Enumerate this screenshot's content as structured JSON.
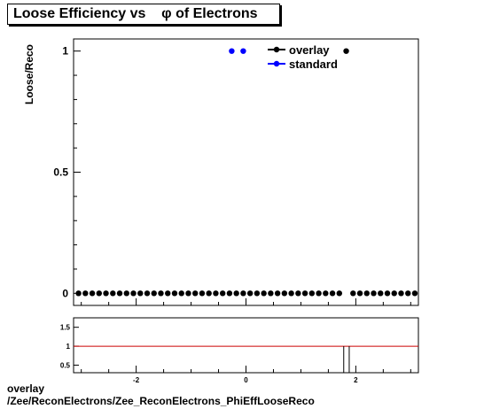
{
  "title": "Loose Efficiency vs    φ of Electrons",
  "footer": {
    "line1": "overlay",
    "line2": "/Zee/ReconElectrons/Zee_ReconElectrons_PhiEffLooseReco"
  },
  "chart_data": [
    {
      "type": "scatter",
      "title": "Loose Efficiency vs    φ of Electrons",
      "ylabel": "Loose/Reco",
      "xlabel": "",
      "xlim": [
        -3.14,
        3.14
      ],
      "ylim": [
        -0.05,
        1.05
      ],
      "yticks": [
        0,
        0.5,
        1
      ],
      "ytick_labels": [
        "0",
        "0.5",
        "1"
      ],
      "legend": {
        "placement": "top-right",
        "entries": [
          "overlay",
          "standard"
        ]
      },
      "colors": {
        "overlay": "#000000",
        "standard": "#0000ff"
      },
      "series": [
        {
          "name": "overlay",
          "x": [
            -3.05,
            -2.925,
            -2.8,
            -2.675,
            -2.55,
            -2.425,
            -2.3,
            -2.175,
            -2.05,
            -1.925,
            -1.8,
            -1.675,
            -1.55,
            -1.425,
            -1.3,
            -1.175,
            -1.05,
            -0.925,
            -0.8,
            -0.675,
            -0.55,
            -0.425,
            -0.3,
            -0.175,
            -0.05,
            0.075,
            0.2,
            0.325,
            0.45,
            0.575,
            0.7,
            0.825,
            0.95,
            1.075,
            1.2,
            1.325,
            1.45,
            1.575,
            1.7,
            1.825,
            1.95,
            2.075,
            2.2,
            2.325,
            2.45,
            2.575,
            2.7,
            2.825,
            2.95,
            3.075
          ],
          "y": [
            0,
            0,
            0,
            0,
            0,
            0,
            0,
            0,
            0,
            0,
            0,
            0,
            0,
            0,
            0,
            0,
            0,
            0,
            0,
            0,
            0,
            0,
            0,
            0,
            0,
            0,
            0,
            0,
            0,
            0,
            0,
            0,
            0,
            0,
            0,
            0,
            0,
            0,
            0,
            1,
            0,
            0,
            0,
            0,
            0,
            0,
            0,
            0,
            0,
            0
          ]
        },
        {
          "name": "standard",
          "x": [
            -0.26,
            -0.05
          ],
          "y": [
            1,
            1
          ]
        }
      ]
    },
    {
      "type": "line",
      "ylim": [
        0.3,
        1.75
      ],
      "yticks": [
        0.5,
        1,
        1.5
      ],
      "ytick_labels": [
        "0.5",
        "1",
        "1.5"
      ],
      "xlim": [
        -3.14,
        3.14
      ],
      "xticks": [
        -2,
        0,
        2
      ],
      "xtick_labels": [
        "-2",
        "0",
        "2"
      ],
      "reference_line": {
        "y": 1,
        "color": "#cc0000"
      },
      "spike_x": [
        1.78,
        1.88
      ]
    }
  ]
}
